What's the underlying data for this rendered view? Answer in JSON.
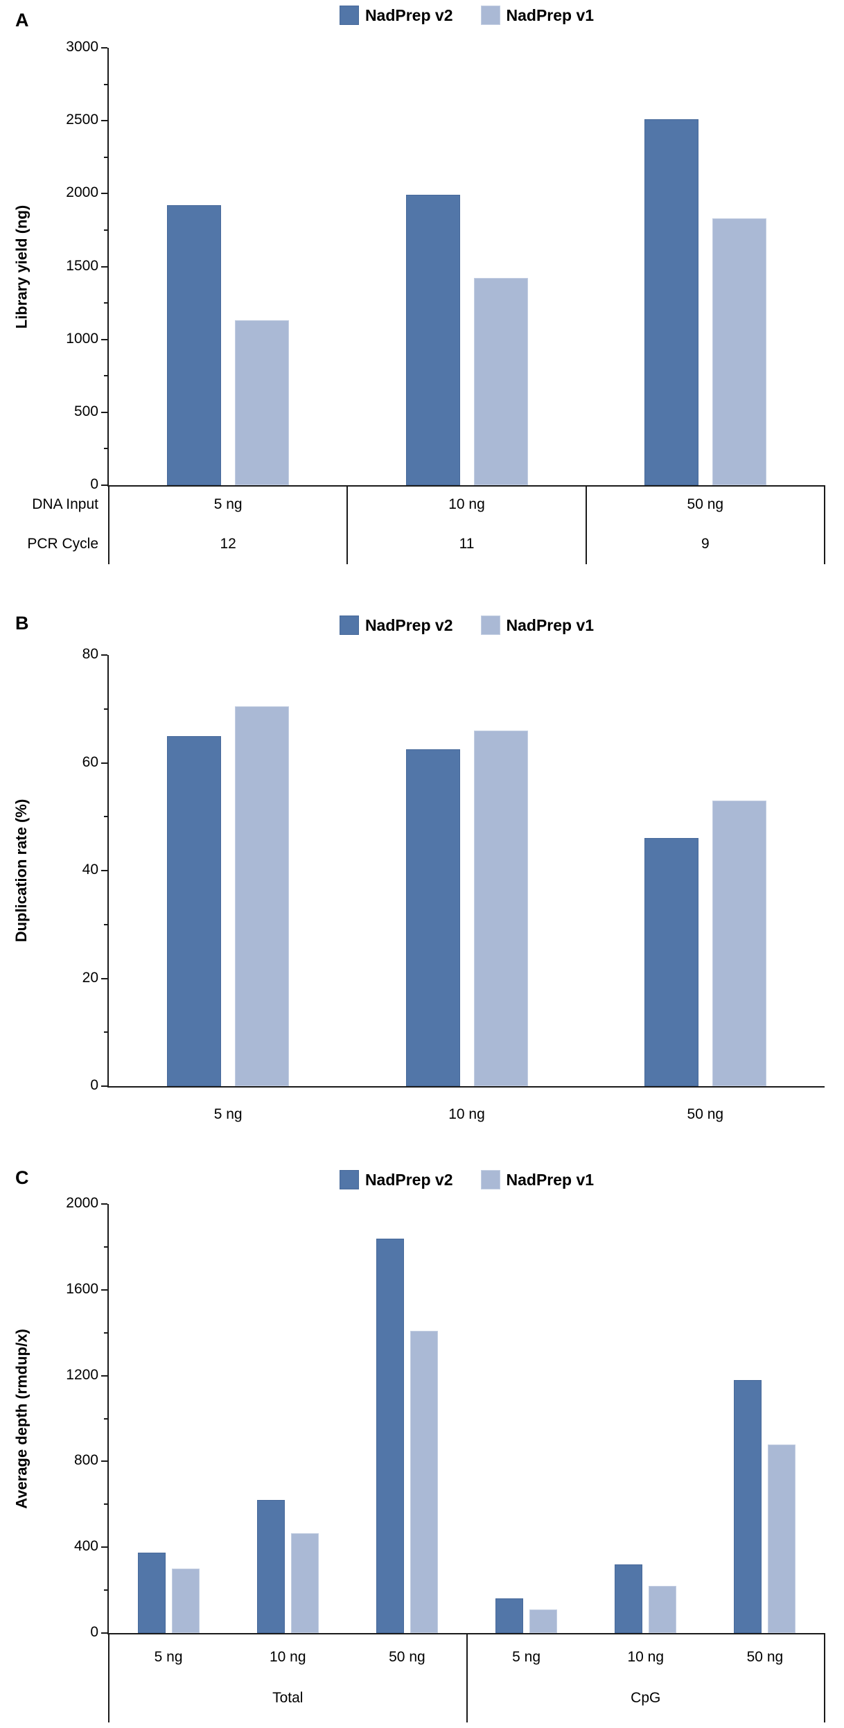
{
  "figure": {
    "colors": {
      "v2": "#5276a8",
      "v1": "#aab9d5",
      "v2_border": "#47699a",
      "v1_border": "#c3cee2",
      "axis": "#1a1a1a"
    },
    "legend": [
      {
        "series": "v2",
        "label": "NadPrep v2"
      },
      {
        "series": "v1",
        "label": "NadPrep v1"
      }
    ]
  },
  "chart_data": [
    {
      "panel": "A",
      "type": "bar",
      "ylabel": "Library yield (ng)",
      "ylim": [
        0,
        3000
      ],
      "ytick_major": 500,
      "ytick_minor": 250,
      "grid": false,
      "legend_position": "top-center",
      "categories": [
        "5 ng",
        "10 ng",
        "50 ng"
      ],
      "xaxis_table": {
        "row_labels": [
          "DNA Input",
          "PCR Cycle"
        ],
        "rows": [
          [
            "5 ng",
            "10 ng",
            "50 ng"
          ],
          [
            "12",
            "11",
            "9"
          ]
        ]
      },
      "series": [
        {
          "name": "NadPrep v2",
          "key": "v2",
          "values": [
            1920,
            1990,
            2510
          ]
        },
        {
          "name": "NadPrep v1",
          "key": "v1",
          "values": [
            1130,
            1420,
            1830
          ]
        }
      ]
    },
    {
      "panel": "B",
      "type": "bar",
      "ylabel": "Duplication rate (%)",
      "ylim": [
        0,
        80
      ],
      "ytick_major": 20,
      "ytick_minor": 10,
      "grid": false,
      "legend_position": "top-center",
      "categories": [
        "5 ng",
        "10 ng",
        "50 ng"
      ],
      "series": [
        {
          "name": "NadPrep v2",
          "key": "v2",
          "values": [
            65,
            62.5,
            46
          ]
        },
        {
          "name": "NadPrep v1",
          "key": "v1",
          "values": [
            70.5,
            66,
            53
          ]
        }
      ]
    },
    {
      "panel": "C",
      "type": "bar",
      "ylabel": "Average depth (rmdup/x)",
      "ylim": [
        0,
        2000
      ],
      "ytick_major": 400,
      "ytick_minor": 200,
      "grid": false,
      "legend_position": "top-center",
      "categories": [
        "5 ng",
        "10 ng",
        "50 ng",
        "5 ng",
        "10 ng",
        "50 ng"
      ],
      "group_labels": [
        "Total",
        "CpG"
      ],
      "series": [
        {
          "name": "NadPrep v2",
          "key": "v2",
          "values": [
            375,
            620,
            1840,
            160,
            320,
            1180
          ]
        },
        {
          "name": "NadPrep v1",
          "key": "v1",
          "values": [
            300,
            465,
            1410,
            110,
            220,
            880
          ]
        }
      ]
    }
  ]
}
